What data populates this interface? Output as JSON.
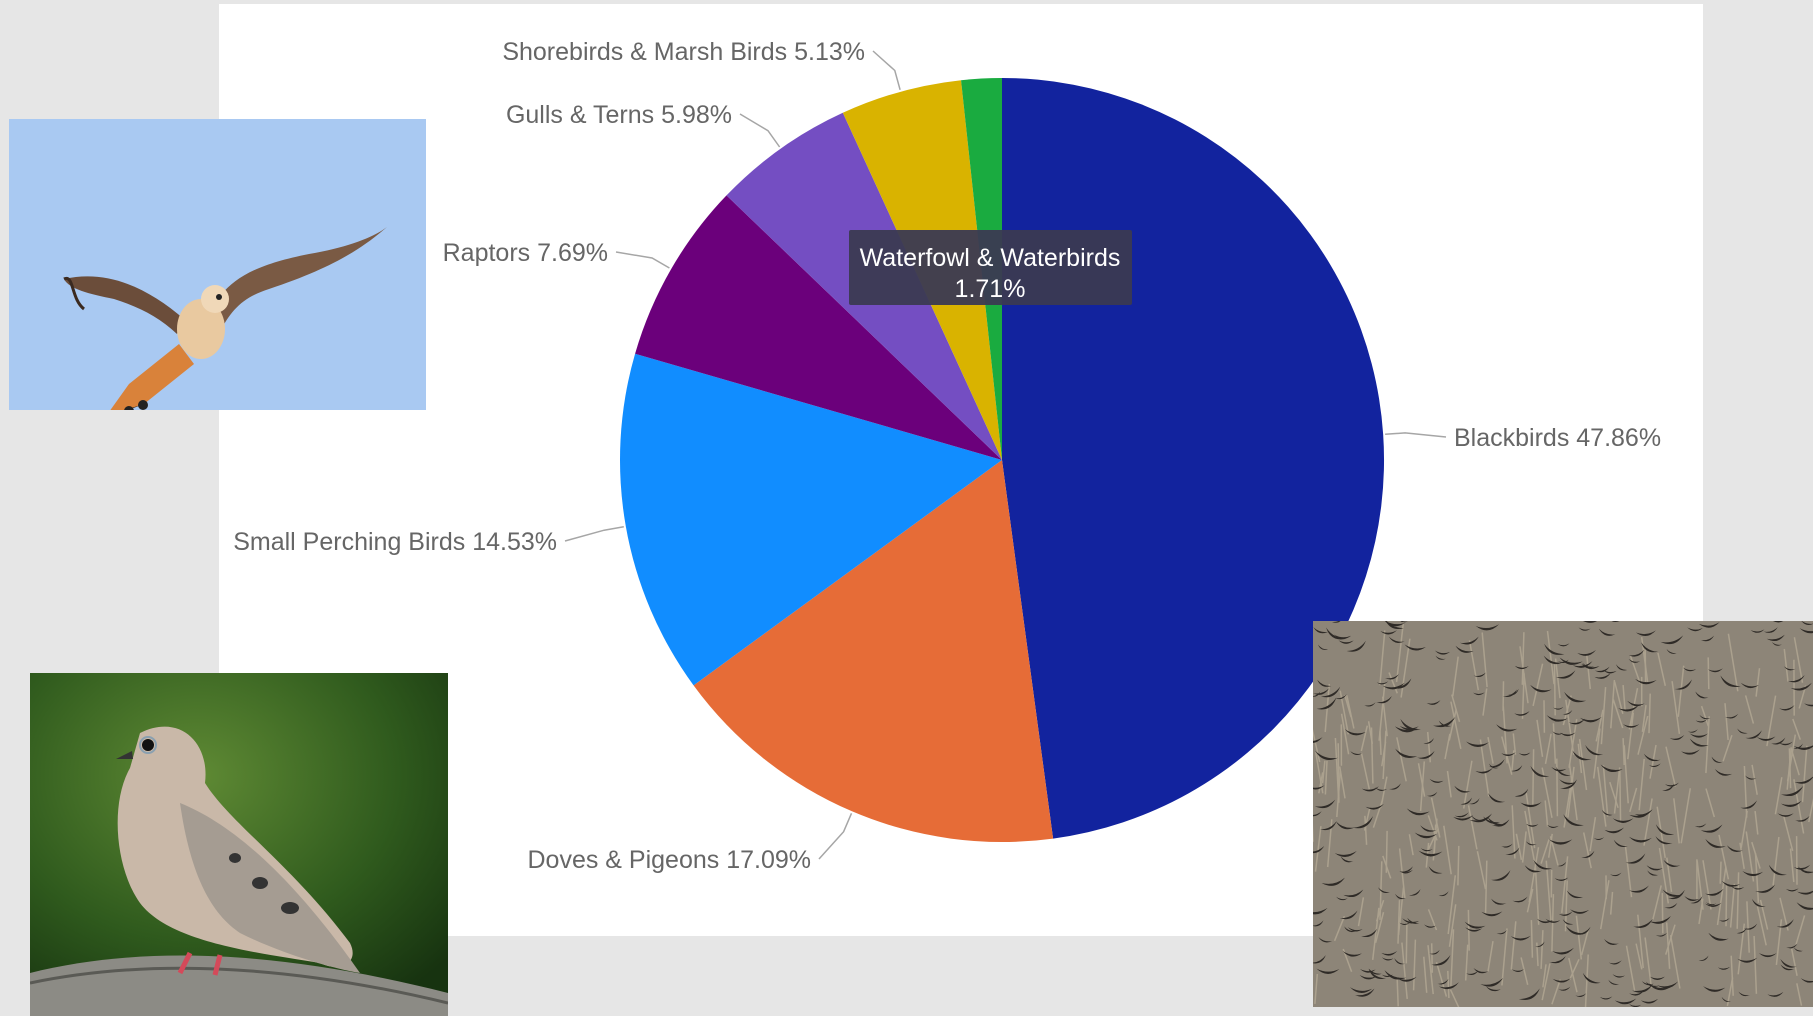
{
  "chart_data": {
    "type": "pie",
    "title": "",
    "start_angle_deg": 0,
    "direction": "clockwise",
    "slices": [
      {
        "label": "Blackbirds",
        "value": 47.86,
        "display": "47.86%",
        "color": "#12239e",
        "label_side": "right"
      },
      {
        "label": "Doves & Pigeons",
        "value": 17.09,
        "display": "17.09%",
        "color": "#e66c37",
        "label_side": "left"
      },
      {
        "label": "Small Perching Birds",
        "value": 14.53,
        "display": "14.53%",
        "color": "#118dff",
        "label_side": "left"
      },
      {
        "label": "Raptors",
        "value": 7.69,
        "display": "7.69%",
        "color": "#6b007b",
        "label_side": "left"
      },
      {
        "label": "Gulls & Terns",
        "value": 5.98,
        "display": "5.98%",
        "color": "#744ec2",
        "label_side": "left"
      },
      {
        "label": "Shorebirds & Marsh Birds",
        "value": 5.13,
        "display": "5.13%",
        "color": "#d9b300",
        "label_side": "left"
      },
      {
        "label": "Waterfowl & Waterbirds",
        "value": 1.71,
        "display": "1.71%",
        "color": "#1aab40",
        "label_side": "none"
      }
    ],
    "tooltip": {
      "label": "Waterfowl & Waterbirds",
      "value": "1.71%"
    },
    "legend": "none",
    "label_color": "#666666",
    "leader_color": "#a6a6a6"
  },
  "photos": [
    {
      "name": "kestrel-photo",
      "subject": "bird-in-flight"
    },
    {
      "name": "dove-photo",
      "subject": "perched-dove"
    },
    {
      "name": "flock-photo",
      "subject": "bird-flock"
    }
  ],
  "colors": {
    "page_background": "#e6e6e6",
    "panel_background": "#ffffff",
    "tooltip_background": "#3b3a52"
  }
}
